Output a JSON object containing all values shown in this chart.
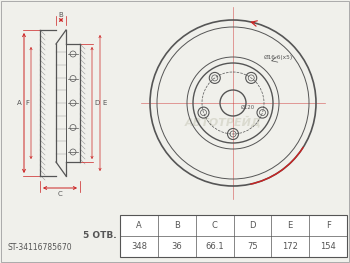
{
  "bg_color": "#f0f0eb",
  "line_color": "#555555",
  "red_color": "#cc2222",
  "part_number": "ST-34116785670",
  "otb": "5",
  "otb_label": "OTB.",
  "headers": [
    "A",
    "B",
    "C",
    "D",
    "E",
    "F"
  ],
  "values": [
    "348",
    "36",
    "66.1",
    "75",
    "172",
    "154"
  ],
  "hole_label": "Ø16.6(x5)",
  "center_label": "Ø120",
  "watermark": "ABTOTPЕЙД"
}
